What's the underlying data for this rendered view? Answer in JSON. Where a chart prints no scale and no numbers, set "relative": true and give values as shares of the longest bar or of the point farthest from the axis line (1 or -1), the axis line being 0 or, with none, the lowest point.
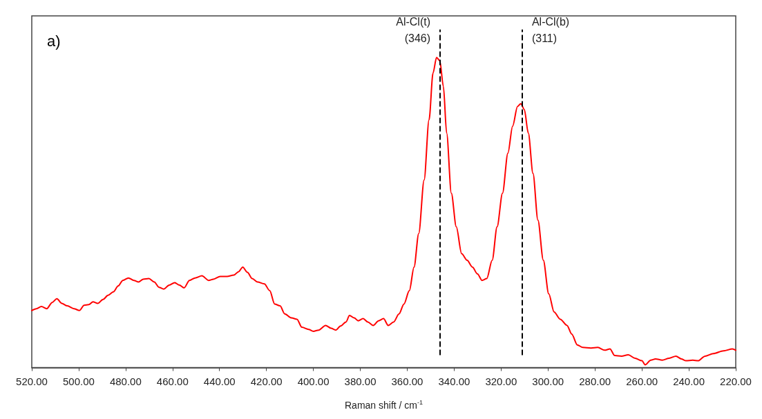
{
  "chart_data": {
    "type": "line",
    "xlabel": "Raman shift / cm$^{-1}$",
    "relative": true,
    "xlim": [
      520,
      220
    ],
    "xticks": [
      {
        "value": 520,
        "label": "520.00"
      },
      {
        "value": 500,
        "label": "500.00"
      },
      {
        "value": 480,
        "label": "480.00"
      },
      {
        "value": 460,
        "label": "460.00"
      },
      {
        "value": 440,
        "label": "440.00"
      },
      {
        "value": 420,
        "label": "420.00"
      },
      {
        "value": 400,
        "label": "400.00"
      },
      {
        "value": 380,
        "label": "380.00"
      },
      {
        "value": 360,
        "label": "360.00"
      },
      {
        "value": 340,
        "label": "340.00"
      },
      {
        "value": 320,
        "label": "320.00"
      },
      {
        "value": 300,
        "label": "300.00"
      },
      {
        "value": 280,
        "label": "280.00"
      },
      {
        "value": 260,
        "label": "260.00"
      },
      {
        "value": 240,
        "label": "240.00"
      },
      {
        "value": 220,
        "label": "220.00"
      }
    ],
    "grid": false,
    "marker": "none",
    "line_style": "solid",
    "annotations": [
      "a)"
    ],
    "ref_lines": [
      {
        "axis": "x",
        "value": 346,
        "label": "Al-Cl(t)\n(346)",
        "color": "#000000",
        "line_style": "dashed"
      },
      {
        "axis": "x",
        "value": 311,
        "label": "Al-Cl(b)\n(311)",
        "color": "#000000",
        "line_style": "dashed"
      }
    ],
    "series": [
      {
        "color": "#ff0000",
        "x": [
          520,
          518.0,
          515.9,
          513.6,
          511.3,
          509.3,
          507.2,
          504.9,
          502.0,
          499.7,
          497.7,
          495.7,
          493.9,
          491.9,
          489.6,
          487.5,
          485.2,
          483.2,
          481.2,
          478.8,
          476.5,
          474.5,
          472.5,
          470.1,
          467.8,
          465.8,
          463.8,
          461.4,
          459.1,
          457.1,
          455.1,
          452.8,
          450.4,
          447.5,
          444.6,
          442.6,
          439.7,
          436.8,
          433.9,
          431.9,
          430.1,
          428.1,
          426.1,
          423.8,
          420.9,
          418.6,
          416.5,
          414.2,
          412.2,
          409.3,
          407.0,
          404.9,
          402.0,
          400.0,
          397.7,
          394.8,
          392.5,
          390.4,
          388.4,
          386.1,
          384.6,
          382.6,
          380.9,
          378.8,
          376.8,
          374.5,
          372.2,
          370.1,
          368.1,
          365.8,
          363.5,
          361.4,
          359.1,
          357.1,
          355.1,
          352.8,
          350.7,
          349.0,
          347.5,
          346.1,
          344.6,
          343.2,
          341.2,
          339.1,
          336.8,
          334.5,
          332.2,
          330.1,
          328.1,
          326.1,
          323.8,
          321.7,
          319.4,
          317.1,
          315.1,
          313.0,
          311.6,
          310.1,
          308.4,
          306.4,
          304.3,
          302.0,
          299.7,
          297.4,
          294.8,
          291.9,
          289.9,
          287.5,
          285.2,
          281.7,
          278.8,
          275.9,
          273.6,
          271.6,
          268.7,
          265.8,
          262.9,
          260.0,
          258.6,
          256.2,
          254.2,
          251.3,
          248.4,
          245.5,
          243.2,
          241.2,
          238.3,
          236.0,
          233.1,
          229.6,
          225.2,
          221.4,
          220
        ],
        "values": [
          0.184,
          0.19,
          0.197,
          0.19,
          0.21,
          0.222,
          0.207,
          0.199,
          0.19,
          0.184,
          0.201,
          0.203,
          0.212,
          0.207,
          0.22,
          0.233,
          0.244,
          0.263,
          0.281,
          0.289,
          0.281,
          0.276,
          0.285,
          0.287,
          0.276,
          0.259,
          0.253,
          0.266,
          0.274,
          0.266,
          0.257,
          0.281,
          0.289,
          0.296,
          0.281,
          0.285,
          0.294,
          0.294,
          0.298,
          0.309,
          0.324,
          0.307,
          0.287,
          0.276,
          0.27,
          0.248,
          0.205,
          0.199,
          0.173,
          0.16,
          0.156,
          0.13,
          0.123,
          0.117,
          0.121,
          0.136,
          0.127,
          0.121,
          0.134,
          0.147,
          0.168,
          0.16,
          0.151,
          0.158,
          0.147,
          0.136,
          0.151,
          0.158,
          0.136,
          0.147,
          0.173,
          0.205,
          0.248,
          0.324,
          0.432,
          0.605,
          0.799,
          0.95,
          1.0,
          0.989,
          0.907,
          0.756,
          0.562,
          0.454,
          0.367,
          0.346,
          0.324,
          0.302,
          0.281,
          0.287,
          0.346,
          0.454,
          0.562,
          0.691,
          0.778,
          0.842,
          0.851,
          0.832,
          0.756,
          0.626,
          0.475,
          0.346,
          0.238,
          0.179,
          0.156,
          0.136,
          0.108,
          0.073,
          0.065,
          0.063,
          0.065,
          0.056,
          0.06,
          0.039,
          0.037,
          0.041,
          0.03,
          0.022,
          0.009,
          0.024,
          0.028,
          0.024,
          0.03,
          0.037,
          0.028,
          0.022,
          0.024,
          0.022,
          0.037,
          0.045,
          0.054,
          0.06,
          0.056
        ]
      }
    ]
  }
}
